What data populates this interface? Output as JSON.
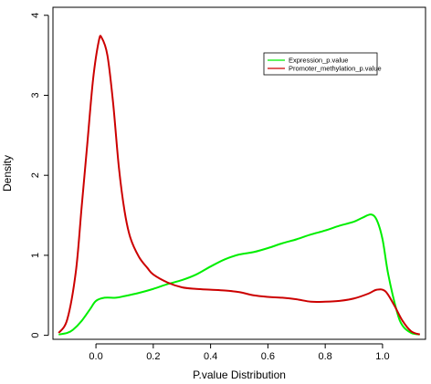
{
  "chart_data": {
    "type": "line",
    "title": "",
    "xlabel": "P.value Distribution",
    "ylabel": "Density",
    "xlim": [
      -0.15,
      1.15
    ],
    "ylim": [
      -0.05,
      4.1
    ],
    "xticks": [
      0.0,
      0.2,
      0.4,
      0.6,
      0.8,
      1.0
    ],
    "xtick_labels": [
      "0.0",
      "0.2",
      "0.4",
      "0.6",
      "0.8",
      "1.0"
    ],
    "yticks": [
      0,
      1,
      2,
      3,
      4
    ],
    "ytick_labels": [
      "0",
      "1",
      "2",
      "3",
      "4"
    ],
    "grid": false,
    "legend": {
      "position": "top-right"
    },
    "series": [
      {
        "name": "Expression_p.value",
        "color": "#00ee00",
        "points": [
          [
            -0.13,
            0.01
          ],
          [
            -0.1,
            0.03
          ],
          [
            -0.08,
            0.07
          ],
          [
            -0.05,
            0.18
          ],
          [
            -0.02,
            0.33
          ],
          [
            0.0,
            0.43
          ],
          [
            0.03,
            0.47
          ],
          [
            0.07,
            0.47
          ],
          [
            0.1,
            0.49
          ],
          [
            0.15,
            0.53
          ],
          [
            0.2,
            0.58
          ],
          [
            0.25,
            0.64
          ],
          [
            0.3,
            0.69
          ],
          [
            0.35,
            0.76
          ],
          [
            0.4,
            0.86
          ],
          [
            0.45,
            0.95
          ],
          [
            0.5,
            1.01
          ],
          [
            0.55,
            1.04
          ],
          [
            0.6,
            1.09
          ],
          [
            0.65,
            1.15
          ],
          [
            0.7,
            1.2
          ],
          [
            0.75,
            1.26
          ],
          [
            0.8,
            1.31
          ],
          [
            0.85,
            1.37
          ],
          [
            0.9,
            1.42
          ],
          [
            0.93,
            1.47
          ],
          [
            0.96,
            1.51
          ],
          [
            0.98,
            1.44
          ],
          [
            1.0,
            1.2
          ],
          [
            1.02,
            0.76
          ],
          [
            1.05,
            0.3
          ],
          [
            1.07,
            0.12
          ],
          [
            1.1,
            0.03
          ],
          [
            1.13,
            0.01
          ]
        ]
      },
      {
        "name": "Promoter_methylation_p.value",
        "color": "#cc0000",
        "points": [
          [
            -0.13,
            0.03
          ],
          [
            -0.1,
            0.2
          ],
          [
            -0.07,
            0.8
          ],
          [
            -0.05,
            1.6
          ],
          [
            -0.03,
            2.4
          ],
          [
            -0.01,
            3.2
          ],
          [
            0.01,
            3.68
          ],
          [
            0.02,
            3.72
          ],
          [
            0.04,
            3.5
          ],
          [
            0.06,
            2.9
          ],
          [
            0.08,
            2.1
          ],
          [
            0.1,
            1.55
          ],
          [
            0.12,
            1.22
          ],
          [
            0.15,
            0.98
          ],
          [
            0.18,
            0.84
          ],
          [
            0.2,
            0.76
          ],
          [
            0.25,
            0.66
          ],
          [
            0.3,
            0.6
          ],
          [
            0.35,
            0.58
          ],
          [
            0.4,
            0.57
          ],
          [
            0.45,
            0.56
          ],
          [
            0.5,
            0.54
          ],
          [
            0.55,
            0.5
          ],
          [
            0.6,
            0.48
          ],
          [
            0.65,
            0.47
          ],
          [
            0.7,
            0.45
          ],
          [
            0.75,
            0.42
          ],
          [
            0.8,
            0.42
          ],
          [
            0.85,
            0.43
          ],
          [
            0.9,
            0.46
          ],
          [
            0.95,
            0.52
          ],
          [
            0.98,
            0.57
          ],
          [
            1.01,
            0.55
          ],
          [
            1.04,
            0.38
          ],
          [
            1.07,
            0.18
          ],
          [
            1.1,
            0.05
          ],
          [
            1.13,
            0.01
          ]
        ]
      }
    ]
  }
}
